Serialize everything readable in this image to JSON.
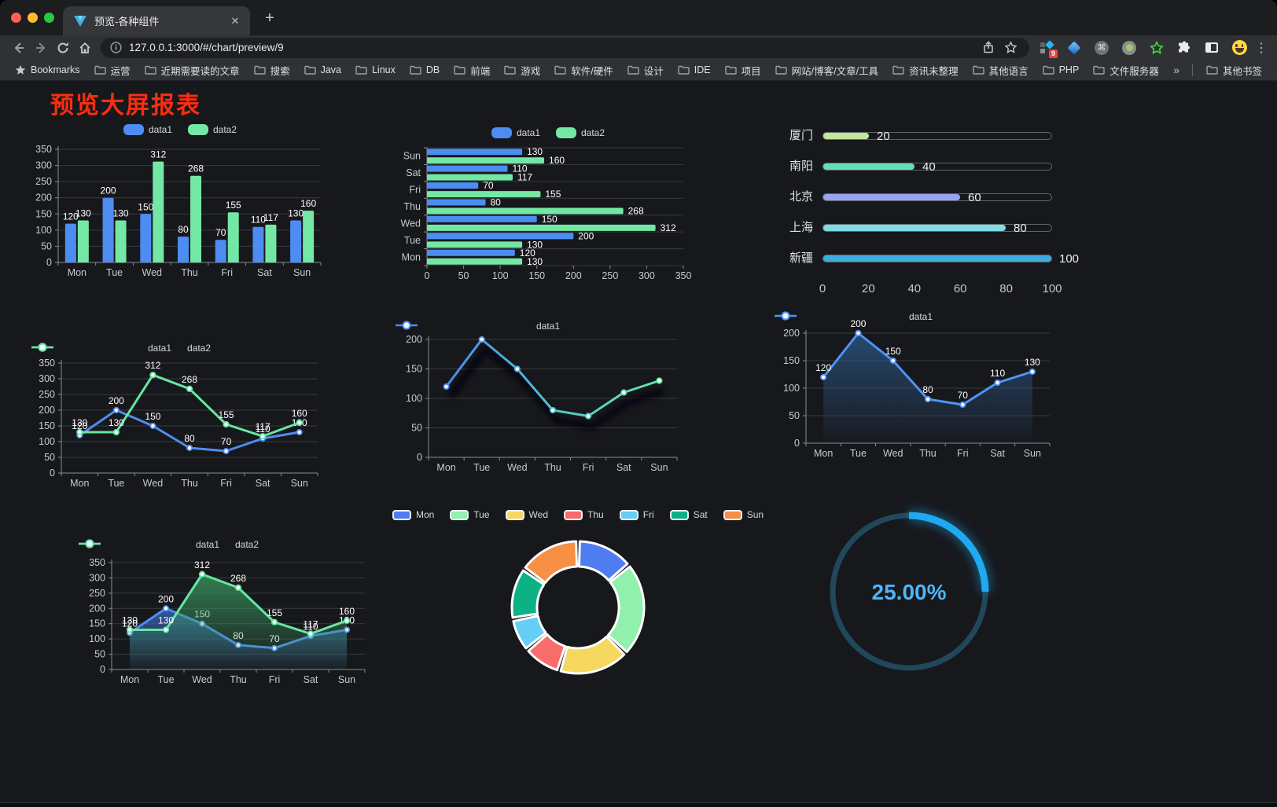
{
  "browser": {
    "tab_title": "预览-各种组件",
    "url": "127.0.0.1:3000/#/chart/preview/9",
    "icons": {
      "close": "✕",
      "new_tab": "+",
      "menu": "⋮",
      "overflow": "»",
      "command": "⌘"
    },
    "extension_badge": "9",
    "bookmarks_label": "Bookmarks",
    "bookmarks": [
      "运营",
      "近期需要读的文章",
      "搜索",
      "Java",
      "Linux",
      "DB",
      "前端",
      "游戏",
      "软件/硬件",
      "设计",
      "IDE",
      "项目",
      "网站/博客/文章/工具",
      "资讯未整理",
      "其他语言",
      "PHP",
      "文件服务器"
    ],
    "other_bookmarks": "其他书签"
  },
  "page": {
    "title": "预览大屏报表",
    "title_color": "#fb2d10"
  },
  "chart_data": [
    {
      "id": "bar-vertical",
      "type": "bar",
      "categories": [
        "Mon",
        "Tue",
        "Wed",
        "Thu",
        "Fri",
        "Sat",
        "Sun"
      ],
      "series": [
        {
          "name": "data1",
          "color": "#4d8df2",
          "values": [
            120,
            200,
            150,
            80,
            70,
            110,
            130
          ]
        },
        {
          "name": "data2",
          "color": "#73e8a5",
          "values": [
            130,
            130,
            312,
            268,
            155,
            117,
            160
          ]
        }
      ],
      "ylim": [
        0,
        350
      ],
      "ytick_step": 50,
      "grid": true,
      "legend_position": "top",
      "show_labels": true
    },
    {
      "id": "bar-horizontal",
      "type": "bar-horizontal",
      "categories": [
        "Sun",
        "Sat",
        "Fri",
        "Thu",
        "Wed",
        "Tue",
        "Mon"
      ],
      "series": [
        {
          "name": "data1",
          "color": "#4d8df2",
          "values": [
            130,
            110,
            70,
            80,
            150,
            200,
            120
          ]
        },
        {
          "name": "data2",
          "color": "#73e8a5",
          "values": [
            160,
            117,
            155,
            268,
            312,
            130,
            130
          ]
        }
      ],
      "xlim": [
        0,
        350
      ],
      "xtick_step": 50,
      "grid": true,
      "legend_position": "top",
      "show_labels": true
    },
    {
      "id": "city-progress",
      "type": "progress-bars",
      "items": [
        {
          "label": "厦门",
          "value": 20,
          "color": "#c4e69c"
        },
        {
          "label": "南阳",
          "value": 40,
          "color": "#66ddb3"
        },
        {
          "label": "北京",
          "value": 60,
          "color": "#98a3f0"
        },
        {
          "label": "上海",
          "value": 80,
          "color": "#7fdee4"
        },
        {
          "label": "新疆",
          "value": 100,
          "color": "#3cabe0"
        }
      ],
      "xlim": [
        0,
        100
      ],
      "xticks": [
        0,
        20,
        40,
        60,
        80,
        100
      ]
    },
    {
      "id": "line-two-series",
      "type": "line",
      "categories": [
        "Mon",
        "Tue",
        "Wed",
        "Thu",
        "Fri",
        "Sat",
        "Sun"
      ],
      "series": [
        {
          "name": "data1",
          "color": "#4d8df2",
          "values": [
            120,
            200,
            150,
            80,
            70,
            110,
            130
          ]
        },
        {
          "name": "data2",
          "color": "#67e6a2",
          "values": [
            130,
            130,
            312,
            268,
            155,
            117,
            160
          ]
        }
      ],
      "ylim": [
        0,
        350
      ],
      "ytick_step": 50,
      "grid": true,
      "legend_position": "top",
      "show_labels": true
    },
    {
      "id": "line-gradient",
      "type": "line",
      "categories": [
        "Mon",
        "Tue",
        "Wed",
        "Thu",
        "Fri",
        "Sat",
        "Sun"
      ],
      "series": [
        {
          "name": "data1",
          "color": "#4a8cf5",
          "color_gradient": [
            "#4a8cf5",
            "#50c2cd",
            "#66e69f"
          ],
          "values": [
            120,
            200,
            150,
            80,
            70,
            110,
            130
          ]
        }
      ],
      "ylim": [
        0,
        200
      ],
      "ytick_step": 50,
      "grid": true,
      "legend_position": "top",
      "show_labels": false,
      "shadow": true
    },
    {
      "id": "area-single",
      "type": "line",
      "categories": [
        "Mon",
        "Tue",
        "Wed",
        "Thu",
        "Fri",
        "Sat",
        "Sun"
      ],
      "series": [
        {
          "name": "data1",
          "color": "#4f94f7",
          "values": [
            120,
            200,
            150,
            80,
            70,
            110,
            130
          ],
          "area": true,
          "area_color": "#2d5a8c"
        }
      ],
      "ylim": [
        0,
        200
      ],
      "ytick_step": 50,
      "grid": true,
      "legend_position": "top",
      "show_labels": true
    },
    {
      "id": "area-two-series",
      "type": "line",
      "categories": [
        "Mon",
        "Tue",
        "Wed",
        "Thu",
        "Fri",
        "Sat",
        "Sun"
      ],
      "series": [
        {
          "name": "data1",
          "color": "#4d8df2",
          "values": [
            120,
            200,
            150,
            80,
            70,
            110,
            130
          ],
          "area": true,
          "area_color": "#3c6ec8"
        },
        {
          "name": "data2",
          "color": "#67e6a2",
          "values": [
            130,
            130,
            312,
            268,
            155,
            117,
            160
          ],
          "area": true,
          "area_color": "#3ca064"
        }
      ],
      "ylim": [
        0,
        350
      ],
      "ytick_step": 50,
      "grid": true,
      "legend_position": "top",
      "show_labels": true
    },
    {
      "id": "donut",
      "type": "pie",
      "labels": [
        "Mon",
        "Tue",
        "Wed",
        "Thu",
        "Fri",
        "Sat",
        "Sun"
      ],
      "values": [
        120,
        200,
        150,
        80,
        70,
        110,
        130
      ],
      "colors": [
        "#4e7df2",
        "#90f0ac",
        "#f6d860",
        "#f96c6c",
        "#66cdf5",
        "#0db284",
        "#f78f44"
      ],
      "inner_radius_ratio": 0.62,
      "legend_position": "top"
    },
    {
      "id": "gauge",
      "type": "gauge",
      "value": 25,
      "label": "25.00%",
      "progress_color": "#1fa9f0",
      "track_color": "#20485a",
      "text_color": "#4cb5f5"
    }
  ]
}
